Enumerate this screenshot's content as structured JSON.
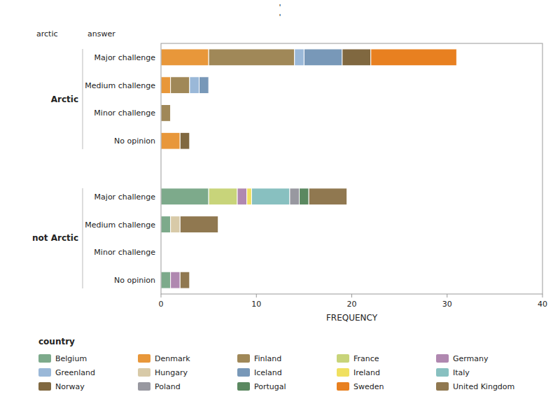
{
  "chart_data": {
    "type": "bar",
    "orientation": "horizontal",
    "stacked": true,
    "grid": false,
    "legend": "bottom",
    "legend_title": "country",
    "x_label": "FREQUENCY",
    "xlim": [
      0,
      40
    ],
    "xticks": [
      0,
      10,
      20,
      30,
      40
    ],
    "annotations": [
      "'",
      "'"
    ],
    "column_headers": [
      "arctic",
      "answer"
    ],
    "categories": [
      "Major challenge",
      "Medium challenge",
      "Minor challenge",
      "No opinion",
      "Major challenge",
      "Medium challenge",
      "Minor challenge",
      "No opinion"
    ],
    "category_groups": [
      "Arctic",
      "Arctic",
      "Arctic",
      "Arctic",
      "not Arctic",
      "not Arctic",
      "not Arctic",
      "not Arctic"
    ],
    "series": [
      {
        "name": "Belgium",
        "color": "#7daa8b",
        "values": [
          null,
          null,
          null,
          null,
          5,
          1,
          null,
          1
        ]
      },
      {
        "name": "Denmark",
        "color": "#e8973a",
        "values": [
          5,
          1,
          null,
          2,
          null,
          null,
          null,
          null
        ]
      },
      {
        "name": "Finland",
        "color": "#a08858",
        "values": [
          9,
          2,
          1,
          null,
          null,
          null,
          null,
          null
        ]
      },
      {
        "name": "France",
        "color": "#c8d47a",
        "values": [
          null,
          null,
          null,
          null,
          3,
          null,
          null,
          null
        ]
      },
      {
        "name": "Germany",
        "color": "#b088b0",
        "values": [
          null,
          null,
          null,
          null,
          1,
          null,
          null,
          1
        ]
      },
      {
        "name": "Greenland",
        "color": "#9ab8d8",
        "values": [
          1,
          1,
          null,
          null,
          null,
          null,
          null,
          null
        ]
      },
      {
        "name": "Hungary",
        "color": "#d8caa8",
        "values": [
          null,
          null,
          null,
          null,
          null,
          1,
          null,
          null
        ]
      },
      {
        "name": "Iceland",
        "color": "#7898b8",
        "values": [
          4,
          1,
          null,
          null,
          null,
          null,
          null,
          null
        ]
      },
      {
        "name": "Ireland",
        "color": "#f0e060",
        "values": [
          null,
          null,
          null,
          null,
          0.5,
          null,
          null,
          null
        ]
      },
      {
        "name": "Italy",
        "color": "#88c0c0",
        "values": [
          null,
          null,
          null,
          null,
          4,
          null,
          null,
          null
        ]
      },
      {
        "name": "Norway",
        "color": "#806840",
        "values": [
          3,
          null,
          null,
          1,
          null,
          null,
          null,
          null
        ]
      },
      {
        "name": "Poland",
        "color": "#9898a0",
        "values": [
          null,
          null,
          null,
          null,
          1,
          null,
          null,
          null
        ]
      },
      {
        "name": "Portugal",
        "color": "#5a8860",
        "values": [
          null,
          null,
          null,
          null,
          1,
          null,
          null,
          null
        ]
      },
      {
        "name": "Sweden",
        "color": "#e88020",
        "values": [
          9,
          null,
          null,
          null,
          null,
          null,
          null,
          null
        ]
      },
      {
        "name": "United Kingdom",
        "color": "#907850",
        "values": [
          null,
          null,
          null,
          null,
          4,
          4,
          null,
          1
        ]
      }
    ]
  }
}
